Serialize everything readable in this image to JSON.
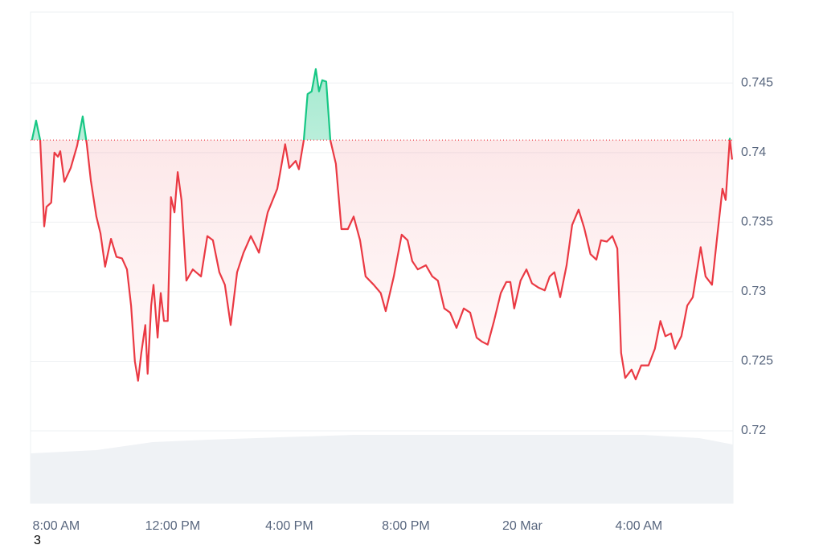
{
  "chart_data": {
    "type": "baseline-line",
    "x": [
      7.17,
      7.31,
      7.45,
      7.59,
      7.67,
      7.83,
      7.94,
      8.06,
      8.14,
      8.28,
      8.5,
      8.72,
      8.91,
      9.05,
      9.19,
      9.38,
      9.52,
      9.68,
      9.88,
      10.07,
      10.26,
      10.43,
      10.57,
      10.7,
      10.81,
      10.92,
      11.06,
      11.14,
      11.26,
      11.34,
      11.48,
      11.59,
      11.7,
      11.83,
      11.94,
      12.06,
      12.17,
      12.3,
      12.47,
      12.69,
      12.97,
      13.19,
      13.38,
      13.6,
      13.79,
      13.99,
      14.21,
      14.43,
      14.68,
      14.96,
      15.26,
      15.59,
      15.86,
      16.0,
      16.22,
      16.33,
      16.5,
      16.63,
      16.77,
      16.91,
      17.02,
      17.13,
      17.27,
      17.41,
      17.6,
      17.79,
      18.01,
      18.21,
      18.43,
      18.62,
      18.9,
      19.14,
      19.31,
      19.59,
      19.86,
      20.06,
      20.22,
      20.41,
      20.69,
      20.91,
      21.1,
      21.32,
      21.52,
      21.74,
      21.99,
      22.21,
      22.43,
      22.62,
      22.81,
      23.03,
      23.26,
      23.45,
      23.59,
      23.72,
      23.94,
      24.14,
      24.33,
      24.55,
      24.77,
      24.94,
      25.1,
      25.3,
      25.52,
      25.71,
      25.93,
      26.12,
      26.34,
      26.54,
      26.7,
      26.9,
      27.09,
      27.26,
      27.39,
      27.53,
      27.75,
      27.89,
      28.08,
      28.33,
      28.55,
      28.74,
      28.91,
      29.1,
      29.24,
      29.46,
      29.66,
      29.85,
      30.12,
      30.29,
      30.51,
      30.7,
      30.87,
      30.98,
      31.12,
      31.2
    ],
    "values": [
      0.7409,
      0.7423,
      0.7409,
      0.7347,
      0.7361,
      0.7364,
      0.74,
      0.7397,
      0.7401,
      0.7379,
      0.7389,
      0.7405,
      0.7426,
      0.7406,
      0.738,
      0.7354,
      0.7342,
      0.7318,
      0.7338,
      0.7325,
      0.7324,
      0.7316,
      0.729,
      0.725,
      0.7236,
      0.7256,
      0.7276,
      0.7241,
      0.729,
      0.7305,
      0.7267,
      0.7299,
      0.7279,
      0.7279,
      0.7368,
      0.7357,
      0.7386,
      0.7366,
      0.7308,
      0.7316,
      0.7311,
      0.734,
      0.7337,
      0.7314,
      0.7305,
      0.7276,
      0.7314,
      0.7328,
      0.734,
      0.7328,
      0.7357,
      0.7374,
      0.7406,
      0.7389,
      0.7394,
      0.7388,
      0.7409,
      0.7442,
      0.7444,
      0.746,
      0.7444,
      0.7452,
      0.7451,
      0.7409,
      0.7392,
      0.7345,
      0.7345,
      0.7354,
      0.7337,
      0.7311,
      0.7305,
      0.7299,
      0.7286,
      0.7311,
      0.7341,
      0.7337,
      0.7322,
      0.7316,
      0.7319,
      0.7311,
      0.7308,
      0.7288,
      0.7285,
      0.7274,
      0.7288,
      0.7285,
      0.7267,
      0.7264,
      0.7262,
      0.7279,
      0.7299,
      0.7307,
      0.7307,
      0.7288,
      0.7308,
      0.7316,
      0.7306,
      0.7303,
      0.7301,
      0.7311,
      0.7314,
      0.7296,
      0.7319,
      0.7348,
      0.7359,
      0.7346,
      0.7327,
      0.7323,
      0.7337,
      0.7336,
      0.734,
      0.7331,
      0.7256,
      0.7238,
      0.7244,
      0.7237,
      0.7247,
      0.7247,
      0.7259,
      0.7279,
      0.7268,
      0.727,
      0.7259,
      0.7268,
      0.729,
      0.7296,
      0.7332,
      0.7311,
      0.7305,
      0.7342,
      0.7374,
      0.7366,
      0.741,
      0.7395
    ],
    "baseline": 0.7409,
    "colors": {
      "up": "#16c784",
      "down": "#ea3943"
    },
    "xlim": [
      7.12,
      31.23
    ],
    "xticks": [
      {
        "value": 8,
        "label": "8:00 AM"
      },
      {
        "value": 12,
        "label": "12:00 PM"
      },
      {
        "value": 16,
        "label": "4:00 PM"
      },
      {
        "value": 20,
        "label": "8:00 PM"
      },
      {
        "value": 24,
        "label": "20 Mar"
      },
      {
        "value": 28,
        "label": "4:00 AM"
      }
    ],
    "ylim": [
      0.7148,
      0.7501
    ],
    "yticks": [
      0.72,
      0.725,
      0.73,
      0.735,
      0.74,
      0.745
    ],
    "grid": true,
    "footnote": "3"
  }
}
